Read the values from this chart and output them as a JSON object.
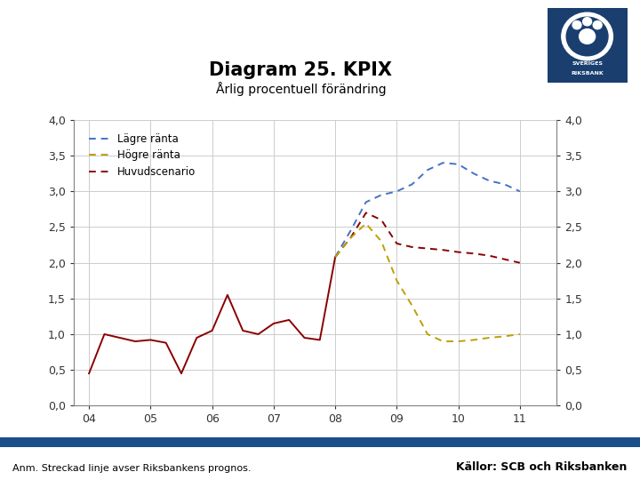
{
  "title": "Diagram 25. KPIX",
  "subtitle": "Årlig procentuell förändring",
  "title_fontsize": 15,
  "subtitle_fontsize": 10,
  "footnote": "Anm. Streckad linje avser Riksbankens prognos.",
  "source": "Källor: SCB och Riksbanken",
  "background_color": "#ffffff",
  "footer_bar_color": "#1a4f8a",
  "ylim": [
    0.0,
    4.0
  ],
  "yticks": [
    0.0,
    0.5,
    1.0,
    1.5,
    2.0,
    2.5,
    3.0,
    3.5,
    4.0
  ],
  "ytick_labels": [
    "0,0",
    "0,5",
    "1,0",
    "1,5",
    "2,0",
    "2,5",
    "3,0",
    "3,5",
    "4,0"
  ],
  "xtick_labels": [
    "04",
    "05",
    "06",
    "07",
    "08",
    "09",
    "10",
    "11"
  ],
  "huvudscenario_solid_x": [
    2004.0,
    2004.25,
    2004.5,
    2004.75,
    2005.0,
    2005.25,
    2005.5,
    2005.75,
    2006.0,
    2006.25,
    2006.5,
    2006.75,
    2007.0,
    2007.25,
    2007.5,
    2007.75,
    2008.0
  ],
  "huvudscenario_solid_y": [
    0.45,
    1.0,
    0.95,
    0.9,
    0.92,
    0.88,
    0.45,
    0.95,
    1.05,
    1.55,
    1.05,
    1.0,
    1.15,
    1.2,
    0.95,
    0.92,
    2.08
  ],
  "huvudscenario_dash_x": [
    2008.0,
    2008.25,
    2008.5,
    2008.75,
    2009.0,
    2009.25,
    2009.5,
    2009.75,
    2010.0,
    2010.25,
    2010.5,
    2010.75,
    2011.0
  ],
  "huvudscenario_dash_y": [
    2.08,
    2.35,
    2.7,
    2.6,
    2.27,
    2.22,
    2.2,
    2.18,
    2.15,
    2.13,
    2.1,
    2.05,
    2.0
  ],
  "lagre_x": [
    2008.0,
    2008.25,
    2008.5,
    2008.75,
    2009.0,
    2009.25,
    2009.5,
    2009.75,
    2010.0,
    2010.25,
    2010.5,
    2010.75,
    2011.0
  ],
  "lagre_y": [
    2.08,
    2.45,
    2.85,
    2.95,
    3.0,
    3.1,
    3.3,
    3.4,
    3.38,
    3.25,
    3.15,
    3.1,
    3.0
  ],
  "hogre_x": [
    2008.0,
    2008.25,
    2008.5,
    2008.75,
    2009.0,
    2009.25,
    2009.5,
    2009.75,
    2010.0,
    2010.25,
    2010.5,
    2010.75,
    2011.0
  ],
  "hogre_y": [
    2.08,
    2.35,
    2.55,
    2.3,
    1.75,
    1.4,
    1.0,
    0.9,
    0.9,
    0.92,
    0.95,
    0.97,
    1.0
  ],
  "color_lagre": "#4472c4",
  "color_hogre": "#bda000",
  "color_huvud": "#8b0000",
  "grid_color": "#cccccc",
  "legend_labels": [
    "Lägre ränta",
    "Högre ränta",
    "Huvudscenario"
  ],
  "logo_color": "#1a3f6f",
  "logo_inner": "#1a3f6f"
}
